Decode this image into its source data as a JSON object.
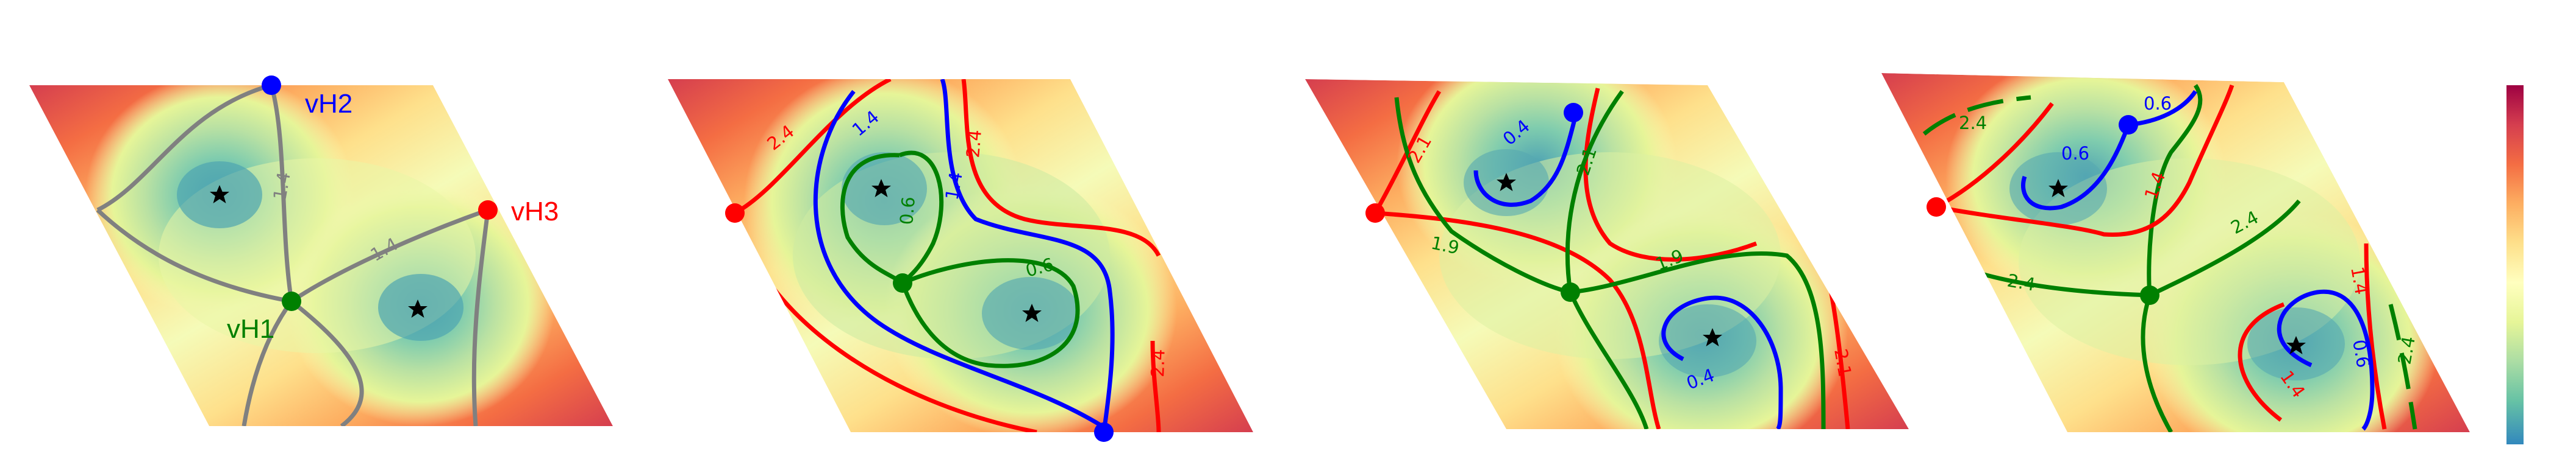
{
  "colors": {
    "gray": "#808080",
    "blue": "#0000ff",
    "green": "#008000",
    "red": "#ff0000",
    "star": "#000000",
    "colormap": [
      "#9e0142",
      "#d53e4f",
      "#f46d43",
      "#fdae61",
      "#fee08b",
      "#ffffbf",
      "#e6f598",
      "#abdda4",
      "#66c2a5",
      "#3288bd"
    ]
  },
  "panels": [
    {
      "id": "panel-1",
      "point_labels": {
        "vH1": "vH1",
        "vH2": "vH2",
        "vH3": "vH3"
      },
      "contour_labels": [
        "1.4",
        "1.4"
      ]
    },
    {
      "id": "panel-2",
      "contour_labels": [
        "2.4",
        "1.4",
        "2.4",
        "0.6",
        "1.4",
        "0.6",
        "2.4"
      ]
    },
    {
      "id": "panel-3",
      "contour_labels": [
        "2.1",
        "0.4",
        "2.1",
        "1.9",
        "1.9",
        "0.4",
        "2.1"
      ]
    },
    {
      "id": "panel-4",
      "contour_labels": [
        "2.4",
        "0.6",
        "0.6",
        "1.4",
        "2.4",
        "2.4",
        "1.4",
        "0.6",
        "1.4",
        "2.4"
      ]
    }
  ],
  "colorbar": {
    "labels": []
  }
}
